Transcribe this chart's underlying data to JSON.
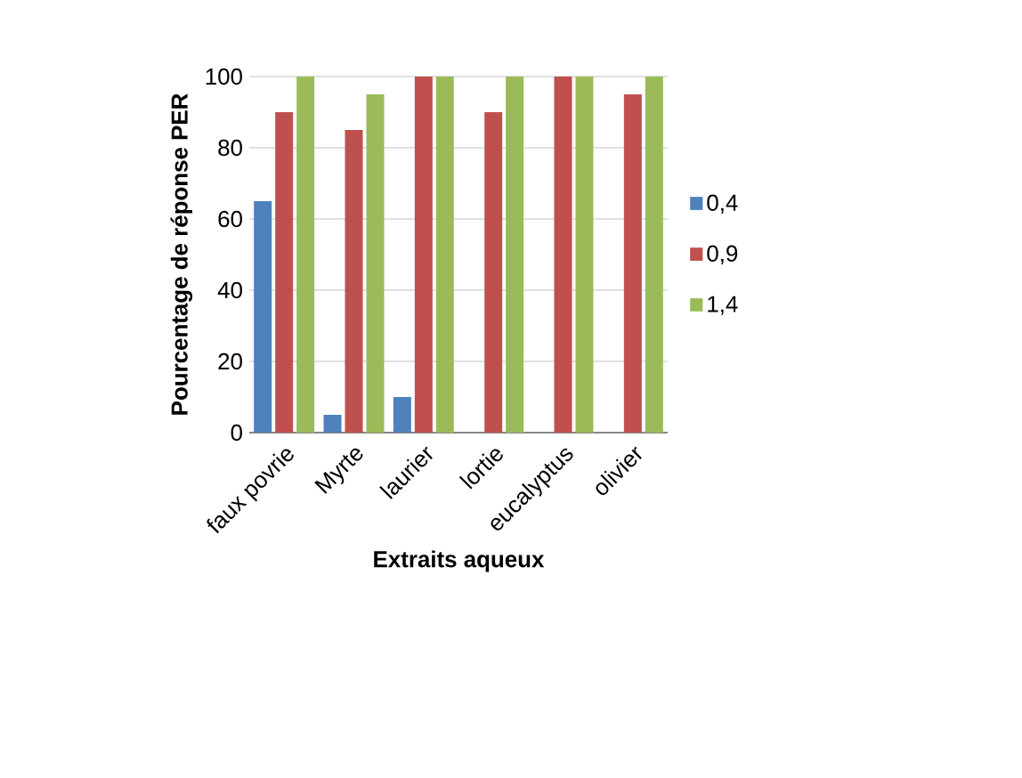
{
  "chart_data": {
    "type": "bar",
    "xlabel": "Extraits aqueux",
    "ylabel": "Pourcentage de réponse PER",
    "categories": [
      "faux povrie",
      "Myrte",
      "laurier",
      "lortie",
      "eucalyptus",
      "olivier"
    ],
    "series": [
      {
        "name": "0,4",
        "color": "#4f81bd",
        "values": [
          65,
          5,
          10,
          0,
          0,
          0
        ]
      },
      {
        "name": "0,9",
        "color": "#c0504d",
        "values": [
          90,
          85,
          100,
          90,
          100,
          95
        ]
      },
      {
        "name": "1,4",
        "color": "#9bbb59",
        "values": [
          100,
          95,
          100,
          100,
          100,
          100
        ]
      }
    ],
    "ylim": [
      0,
      100
    ],
    "yticks": [
      0,
      20,
      40,
      60,
      80,
      100
    ],
    "grid": "y",
    "legend": "right"
  }
}
